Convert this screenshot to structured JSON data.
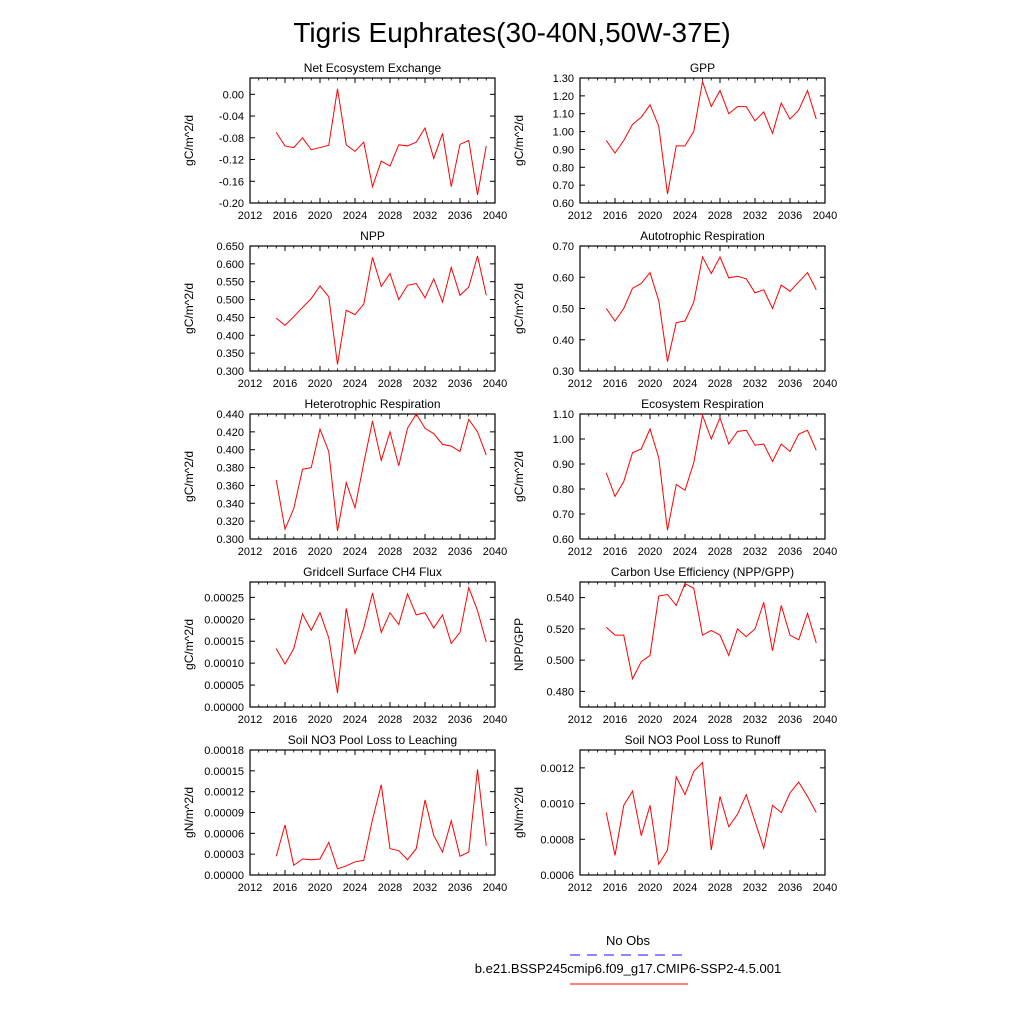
{
  "title": "Tigris Euphrates(30-40N,50W-37E)",
  "legend": {
    "obs_label": "No Obs",
    "obs_color": "#4040ff",
    "run_label": "b.e21.BSSP245cmip6.f09_g17.CMIP6-SSP2-4.5.001",
    "run_color": "#ff0000"
  },
  "chart_data": [
    {
      "type": "line",
      "title": "Net Ecosystem Exchange",
      "ylabel": "gC/m^2/d",
      "xlim": [
        2012,
        2040
      ],
      "ylim": [
        -0.2,
        0.03
      ],
      "xticks": [
        "2012",
        "2016",
        "2020",
        "2024",
        "2028",
        "2032",
        "2036",
        "2040"
      ],
      "yticks": [
        "0.00",
        "-0.04",
        "-0.08",
        "-0.12",
        "-0.16",
        "-0.20"
      ],
      "x": [
        2015,
        2016,
        2017,
        2018,
        2019,
        2020,
        2021,
        2022,
        2023,
        2024,
        2025,
        2026,
        2027,
        2028,
        2029,
        2030,
        2031,
        2032,
        2033,
        2034,
        2035,
        2036,
        2037,
        2038,
        2039
      ],
      "series": [
        {
          "values": [
            -0.07,
            -0.095,
            -0.098,
            -0.08,
            -0.102,
            -0.098,
            -0.094,
            0.01,
            -0.093,
            -0.105,
            -0.088,
            -0.17,
            -0.123,
            -0.132,
            -0.093,
            -0.095,
            -0.088,
            -0.062,
            -0.118,
            -0.072,
            -0.17,
            -0.092,
            -0.085,
            -0.185,
            -0.095
          ]
        }
      ]
    },
    {
      "type": "line",
      "title": "GPP",
      "ylabel": "gC/m^2/d",
      "xlim": [
        2012,
        2040
      ],
      "ylim": [
        0.6,
        1.3
      ],
      "xticks": [
        "2012",
        "2016",
        "2020",
        "2024",
        "2028",
        "2032",
        "2036",
        "2040"
      ],
      "yticks": [
        "1.30",
        "1.20",
        "1.10",
        "1.00",
        "0.90",
        "0.80",
        "0.70",
        "0.60"
      ],
      "x": [
        2015,
        2016,
        2017,
        2018,
        2019,
        2020,
        2021,
        2022,
        2023,
        2024,
        2025,
        2026,
        2027,
        2028,
        2029,
        2030,
        2031,
        2032,
        2033,
        2034,
        2035,
        2036,
        2037,
        2038,
        2039
      ],
      "series": [
        {
          "values": [
            0.95,
            0.88,
            0.95,
            1.04,
            1.08,
            1.15,
            1.03,
            0.65,
            0.92,
            0.92,
            1.0,
            1.28,
            1.14,
            1.23,
            1.1,
            1.14,
            1.14,
            1.06,
            1.11,
            0.99,
            1.16,
            1.07,
            1.12,
            1.23,
            1.07
          ]
        }
      ]
    },
    {
      "type": "line",
      "title": "NPP",
      "ylabel": "gC/m^2/d",
      "xlim": [
        2012,
        2040
      ],
      "ylim": [
        0.3,
        0.65
      ],
      "xticks": [
        "2012",
        "2016",
        "2020",
        "2024",
        "2028",
        "2032",
        "2036",
        "2040"
      ],
      "yticks": [
        "0.650",
        "0.600",
        "0.550",
        "0.500",
        "0.450",
        "0.400",
        "0.350",
        "0.300"
      ],
      "x": [
        2015,
        2016,
        2017,
        2018,
        2019,
        2020,
        2021,
        2022,
        2023,
        2024,
        2025,
        2026,
        2027,
        2028,
        2029,
        2030,
        2031,
        2032,
        2033,
        2034,
        2035,
        2036,
        2037,
        2038,
        2039
      ],
      "series": [
        {
          "values": [
            0.448,
            0.428,
            0.452,
            0.478,
            0.503,
            0.538,
            0.508,
            0.318,
            0.47,
            0.458,
            0.487,
            0.618,
            0.537,
            0.573,
            0.5,
            0.54,
            0.545,
            0.505,
            0.558,
            0.493,
            0.59,
            0.512,
            0.535,
            0.622,
            0.512
          ]
        }
      ]
    },
    {
      "type": "line",
      "title": "Autotrophic Respiration",
      "ylabel": "gC/m^2/d",
      "xlim": [
        2012,
        2040
      ],
      "ylim": [
        0.3,
        0.7
      ],
      "xticks": [
        "2012",
        "2016",
        "2020",
        "2024",
        "2028",
        "2032",
        "2036",
        "2040"
      ],
      "yticks": [
        "0.70",
        "0.60",
        "0.50",
        "0.40",
        "0.30"
      ],
      "x": [
        2015,
        2016,
        2017,
        2018,
        2019,
        2020,
        2021,
        2022,
        2023,
        2024,
        2025,
        2026,
        2027,
        2028,
        2029,
        2030,
        2031,
        2032,
        2033,
        2034,
        2035,
        2036,
        2037,
        2038,
        2039
      ],
      "series": [
        {
          "values": [
            0.5,
            0.46,
            0.5,
            0.565,
            0.58,
            0.615,
            0.525,
            0.33,
            0.455,
            0.46,
            0.52,
            0.665,
            0.612,
            0.665,
            0.598,
            0.603,
            0.595,
            0.55,
            0.56,
            0.5,
            0.575,
            0.555,
            0.585,
            0.615,
            0.56
          ]
        }
      ]
    },
    {
      "type": "line",
      "title": "Heterotrophic Respiration",
      "ylabel": "gC/m^2/d",
      "xlim": [
        2012,
        2040
      ],
      "ylim": [
        0.3,
        0.44
      ],
      "xticks": [
        "2012",
        "2016",
        "2020",
        "2024",
        "2028",
        "2032",
        "2036",
        "2040"
      ],
      "yticks": [
        "0.440",
        "0.420",
        "0.400",
        "0.380",
        "0.360",
        "0.340",
        "0.320",
        "0.300"
      ],
      "x": [
        2015,
        2016,
        2017,
        2018,
        2019,
        2020,
        2021,
        2022,
        2023,
        2024,
        2025,
        2026,
        2027,
        2028,
        2029,
        2030,
        2031,
        2032,
        2033,
        2034,
        2035,
        2036,
        2037,
        2038,
        2039
      ],
      "series": [
        {
          "values": [
            0.366,
            0.311,
            0.334,
            0.378,
            0.38,
            0.423,
            0.398,
            0.309,
            0.363,
            0.335,
            0.385,
            0.432,
            0.388,
            0.42,
            0.382,
            0.424,
            0.44,
            0.424,
            0.418,
            0.406,
            0.404,
            0.398,
            0.434,
            0.42,
            0.394
          ]
        }
      ]
    },
    {
      "type": "line",
      "title": "Ecosystem Respiration",
      "ylabel": "gC/m^2/d",
      "xlim": [
        2012,
        2040
      ],
      "ylim": [
        0.6,
        1.1
      ],
      "xticks": [
        "2012",
        "2016",
        "2020",
        "2024",
        "2028",
        "2032",
        "2036",
        "2040"
      ],
      "yticks": [
        "1.10",
        "1.00",
        "0.90",
        "0.80",
        "0.70",
        "0.60"
      ],
      "x": [
        2015,
        2016,
        2017,
        2018,
        2019,
        2020,
        2021,
        2022,
        2023,
        2024,
        2025,
        2026,
        2027,
        2028,
        2029,
        2030,
        2031,
        2032,
        2033,
        2034,
        2035,
        2036,
        2037,
        2038,
        2039
      ],
      "series": [
        {
          "values": [
            0.865,
            0.77,
            0.83,
            0.945,
            0.96,
            1.04,
            0.925,
            0.635,
            0.818,
            0.795,
            0.905,
            1.095,
            1.0,
            1.085,
            0.98,
            1.03,
            1.035,
            0.975,
            0.98,
            0.91,
            0.98,
            0.95,
            1.02,
            1.035,
            0.955
          ]
        }
      ]
    },
    {
      "type": "line",
      "title": "Gridcell Surface CH4 Flux",
      "ylabel": "gC/m^2/d",
      "xlim": [
        2012,
        2040
      ],
      "ylim": [
        0.0,
        0.000285
      ],
      "xticks": [
        "2012",
        "2016",
        "2020",
        "2024",
        "2028",
        "2032",
        "2036",
        "2040"
      ],
      "yticks": [
        "0.00025",
        "0.00020",
        "0.00015",
        "0.00010",
        "0.00005",
        "0.00000"
      ],
      "x": [
        2015,
        2016,
        2017,
        2018,
        2019,
        2020,
        2021,
        2022,
        2023,
        2024,
        2025,
        2026,
        2027,
        2028,
        2029,
        2030,
        2031,
        2032,
        2033,
        2034,
        2035,
        2036,
        2037,
        2038,
        2039
      ],
      "series": [
        {
          "values": [
            0.000133,
            9.8e-05,
            0.000133,
            0.000212,
            0.000175,
            0.000215,
            0.000158,
            3.2e-05,
            0.000225,
            0.000122,
            0.00018,
            0.00026,
            0.00017,
            0.000215,
            0.000188,
            0.000258,
            0.00021,
            0.000215,
            0.00018,
            0.00021,
            0.000145,
            0.00017,
            0.000272,
            0.00022,
            0.000148
          ]
        }
      ]
    },
    {
      "type": "line",
      "title": "Carbon Use Efficiency (NPP/GPP)",
      "ylabel": "NPP/GPP",
      "xlim": [
        2012,
        2040
      ],
      "ylim": [
        0.47,
        0.55
      ],
      "xticks": [
        "2012",
        "2016",
        "2020",
        "2024",
        "2028",
        "2032",
        "2036",
        "2040"
      ],
      "yticks": [
        "0.540",
        "0.520",
        "0.500",
        "0.480"
      ],
      "x": [
        2015,
        2016,
        2017,
        2018,
        2019,
        2020,
        2021,
        2022,
        2023,
        2024,
        2025,
        2026,
        2027,
        2028,
        2029,
        2030,
        2031,
        2032,
        2033,
        2034,
        2035,
        2036,
        2037,
        2038,
        2039
      ],
      "series": [
        {
          "values": [
            0.521,
            0.516,
            0.516,
            0.488,
            0.499,
            0.503,
            0.541,
            0.542,
            0.535,
            0.549,
            0.546,
            0.516,
            0.519,
            0.516,
            0.503,
            0.52,
            0.515,
            0.52,
            0.537,
            0.506,
            0.535,
            0.516,
            0.513,
            0.53,
            0.511
          ]
        }
      ]
    },
    {
      "type": "line",
      "title": "Soil NO3 Pool Loss to Leaching",
      "ylabel": "gN/m^2/d",
      "xlim": [
        2012,
        2040
      ],
      "ylim": [
        0.0,
        0.00018
      ],
      "xticks": [
        "2012",
        "2016",
        "2020",
        "2024",
        "2028",
        "2032",
        "2036",
        "2040"
      ],
      "yticks": [
        "0.00018",
        "0.00015",
        "0.00012",
        "0.00009",
        "0.00006",
        "0.00003",
        "0.00000"
      ],
      "x": [
        2015,
        2016,
        2017,
        2018,
        2019,
        2020,
        2021,
        2022,
        2023,
        2024,
        2025,
        2026,
        2027,
        2028,
        2029,
        2030,
        2031,
        2032,
        2033,
        2034,
        2035,
        2036,
        2037,
        2038,
        2039
      ],
      "series": [
        {
          "values": [
            2.7e-05,
            7.2e-05,
            1.4e-05,
            2.3e-05,
            2.2e-05,
            2.3e-05,
            4.7e-05,
            9e-06,
            1.3e-05,
            1.9e-05,
            2.1e-05,
            8e-05,
            0.00013,
            3.8e-05,
            3.5e-05,
            2.2e-05,
            3.8e-05,
            0.000108,
            5.7e-05,
            3.3e-05,
            7.8e-05,
            2.7e-05,
            3.3e-05,
            0.000152,
            4.2e-05
          ]
        }
      ]
    },
    {
      "type": "line",
      "title": "Soil NO3 Pool Loss to Runoff",
      "ylabel": "gN/m^2/d",
      "xlim": [
        2012,
        2040
      ],
      "ylim": [
        0.0006,
        0.0013
      ],
      "xticks": [
        "2012",
        "2016",
        "2020",
        "2024",
        "2028",
        "2032",
        "2036",
        "2040"
      ],
      "yticks": [
        "0.0012",
        "0.0010",
        "0.0008",
        "0.0006"
      ],
      "x": [
        2015,
        2016,
        2017,
        2018,
        2019,
        2020,
        2021,
        2022,
        2023,
        2024,
        2025,
        2026,
        2027,
        2028,
        2029,
        2030,
        2031,
        2032,
        2033,
        2034,
        2035,
        2036,
        2037,
        2038,
        2039
      ],
      "series": [
        {
          "values": [
            0.00095,
            0.00071,
            0.00099,
            0.00107,
            0.00082,
            0.00099,
            0.00066,
            0.00074,
            0.00115,
            0.00105,
            0.00118,
            0.00123,
            0.00074,
            0.00104,
            0.00087,
            0.00094,
            0.00105,
            0.0009,
            0.00075,
            0.00099,
            0.00095,
            0.00106,
            0.00112,
            0.00104,
            0.00095
          ]
        }
      ]
    }
  ]
}
